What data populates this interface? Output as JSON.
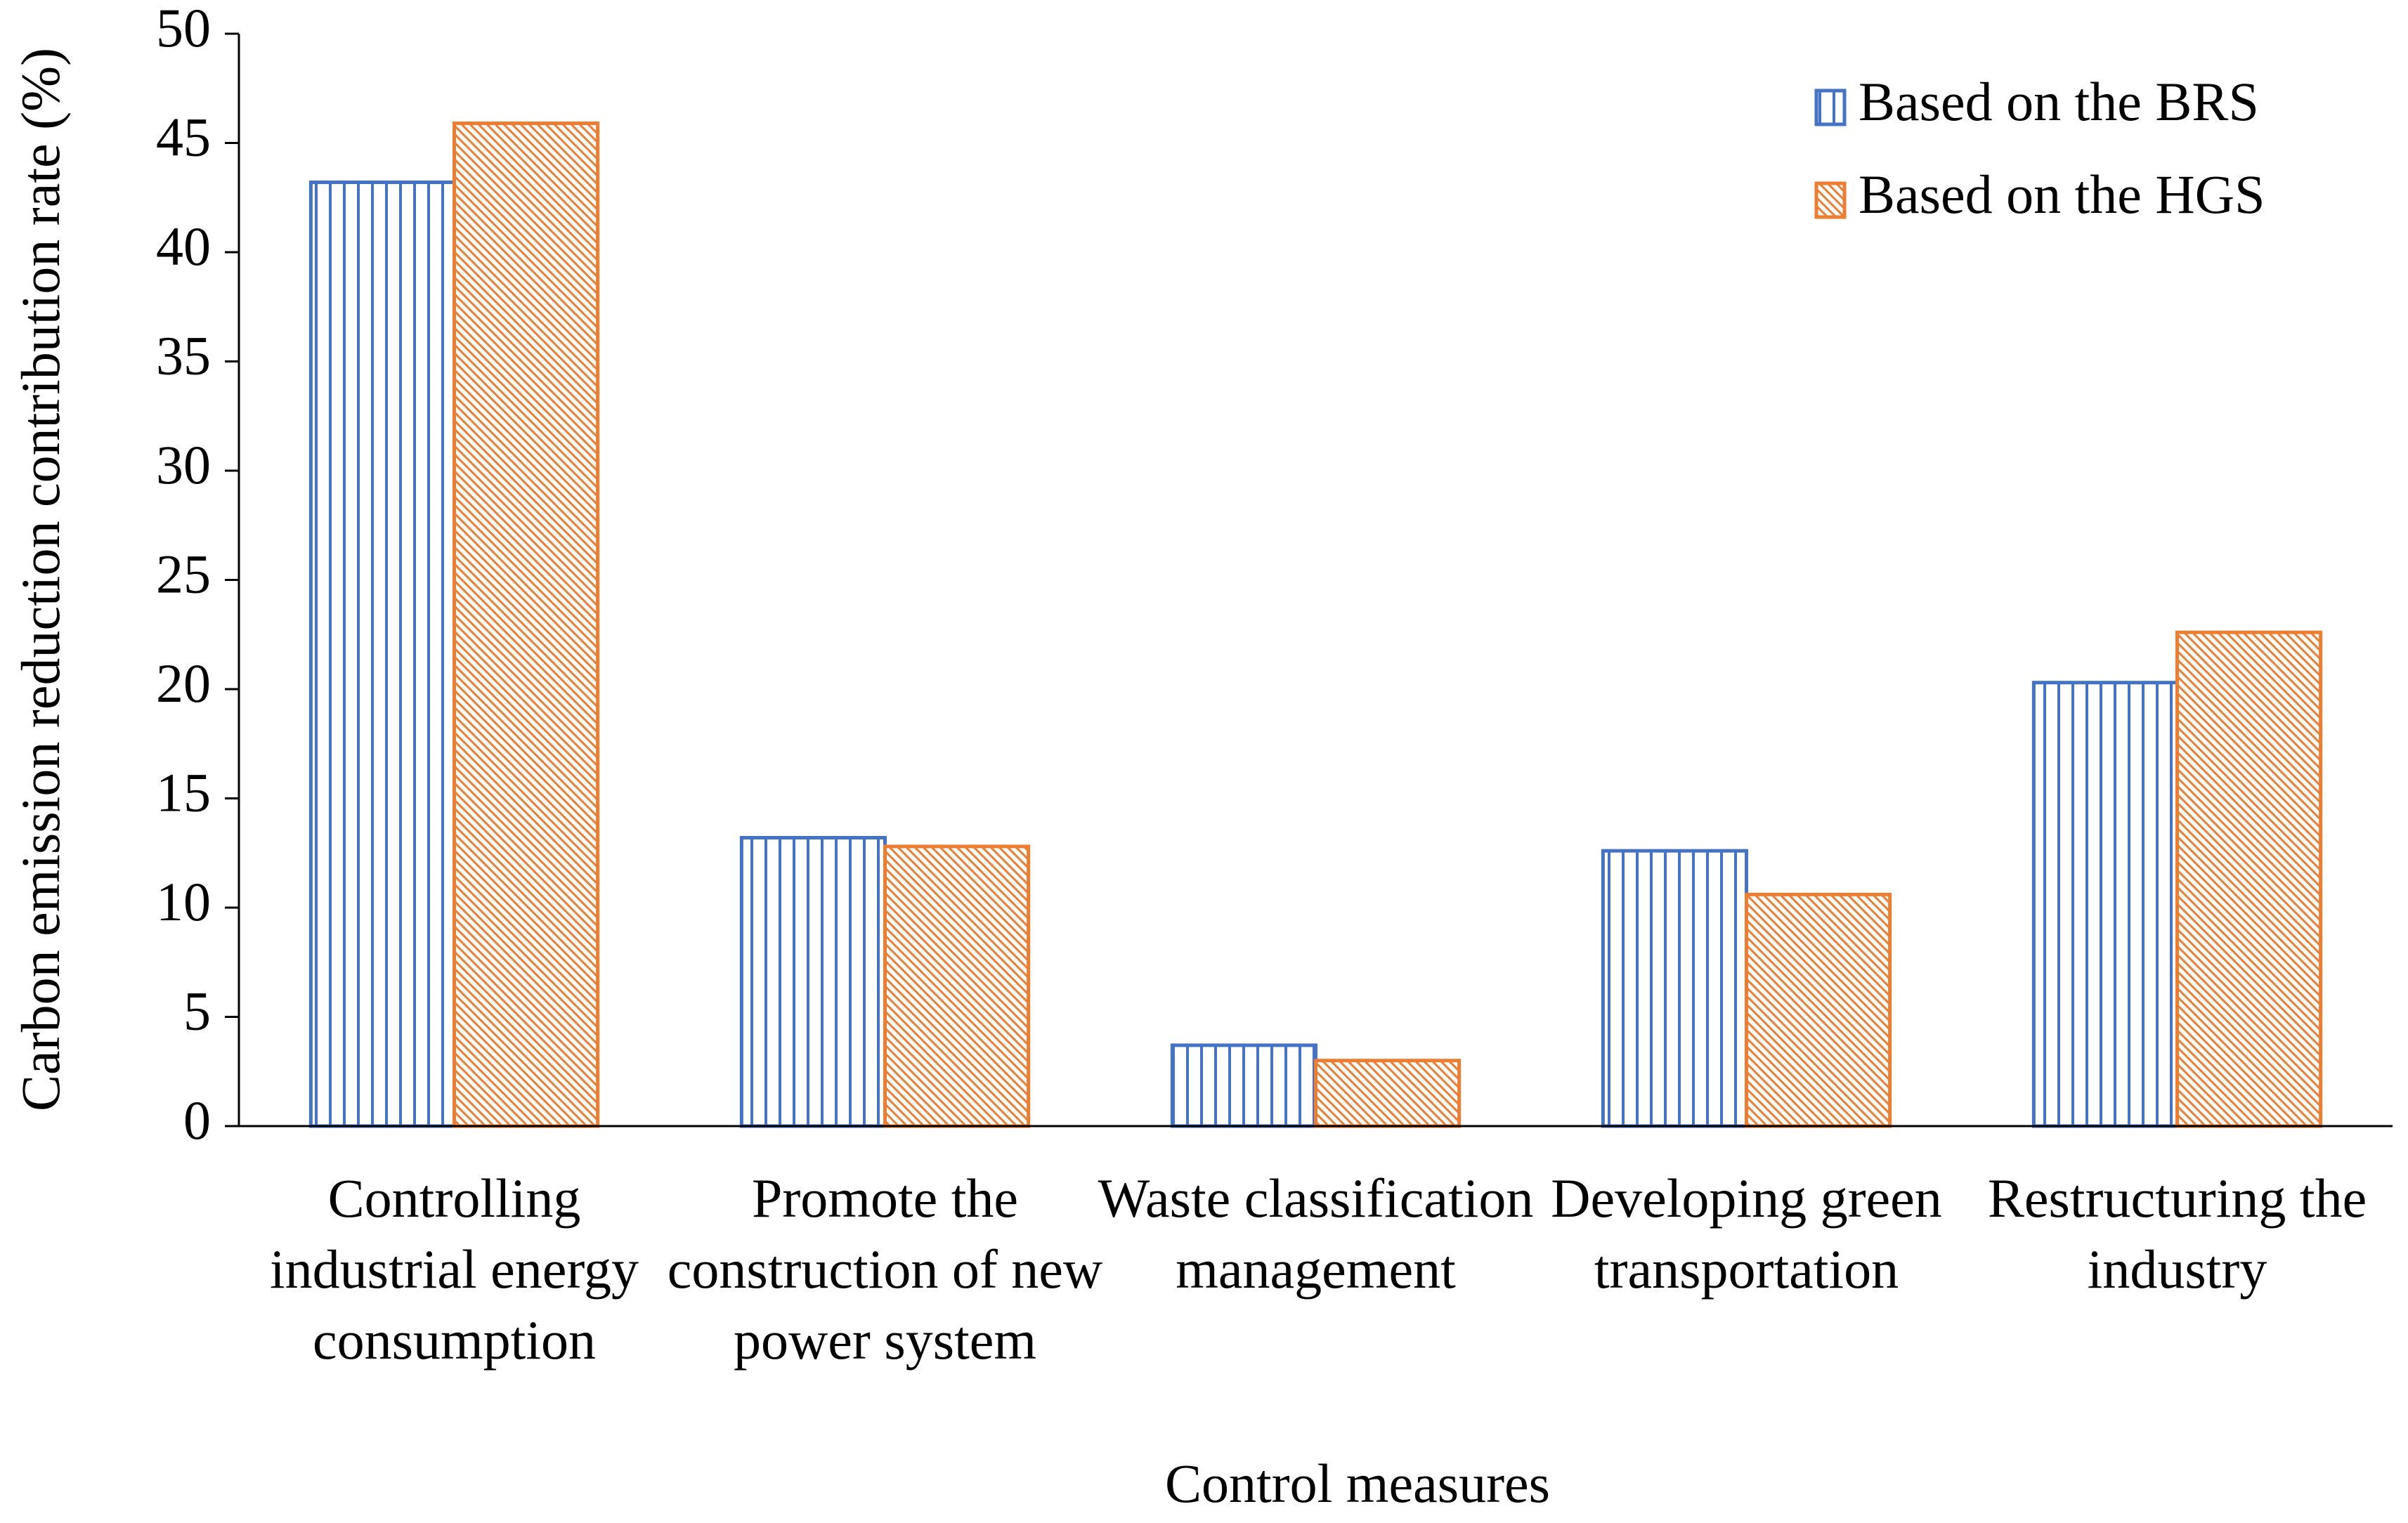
{
  "chart_data": {
    "type": "bar",
    "x_label": "Control measures",
    "y_label": "Carbon emission reduction contribution rate (%)",
    "categories": [
      "Controlling industrial energy consumption",
      "Promote the construction of new power system",
      "Waste classification management",
      "Developing green transportation",
      "Restructuring the industry"
    ],
    "series": [
      {
        "name": "Based on the BRS",
        "color": "#4472c4",
        "pattern": "vertical",
        "values": [
          43.2,
          13.2,
          3.7,
          12.6,
          20.3
        ]
      },
      {
        "name": "Based on the HGS",
        "color": "#ed7d31",
        "pattern": "diagonal",
        "values": [
          45.9,
          12.8,
          3.0,
          10.6,
          22.6
        ]
      }
    ],
    "ylim": [
      0,
      50
    ],
    "yticks": [
      0,
      5,
      10,
      15,
      20,
      25,
      30,
      35,
      40,
      45,
      50
    ],
    "grid": false,
    "legend": "top-right"
  }
}
